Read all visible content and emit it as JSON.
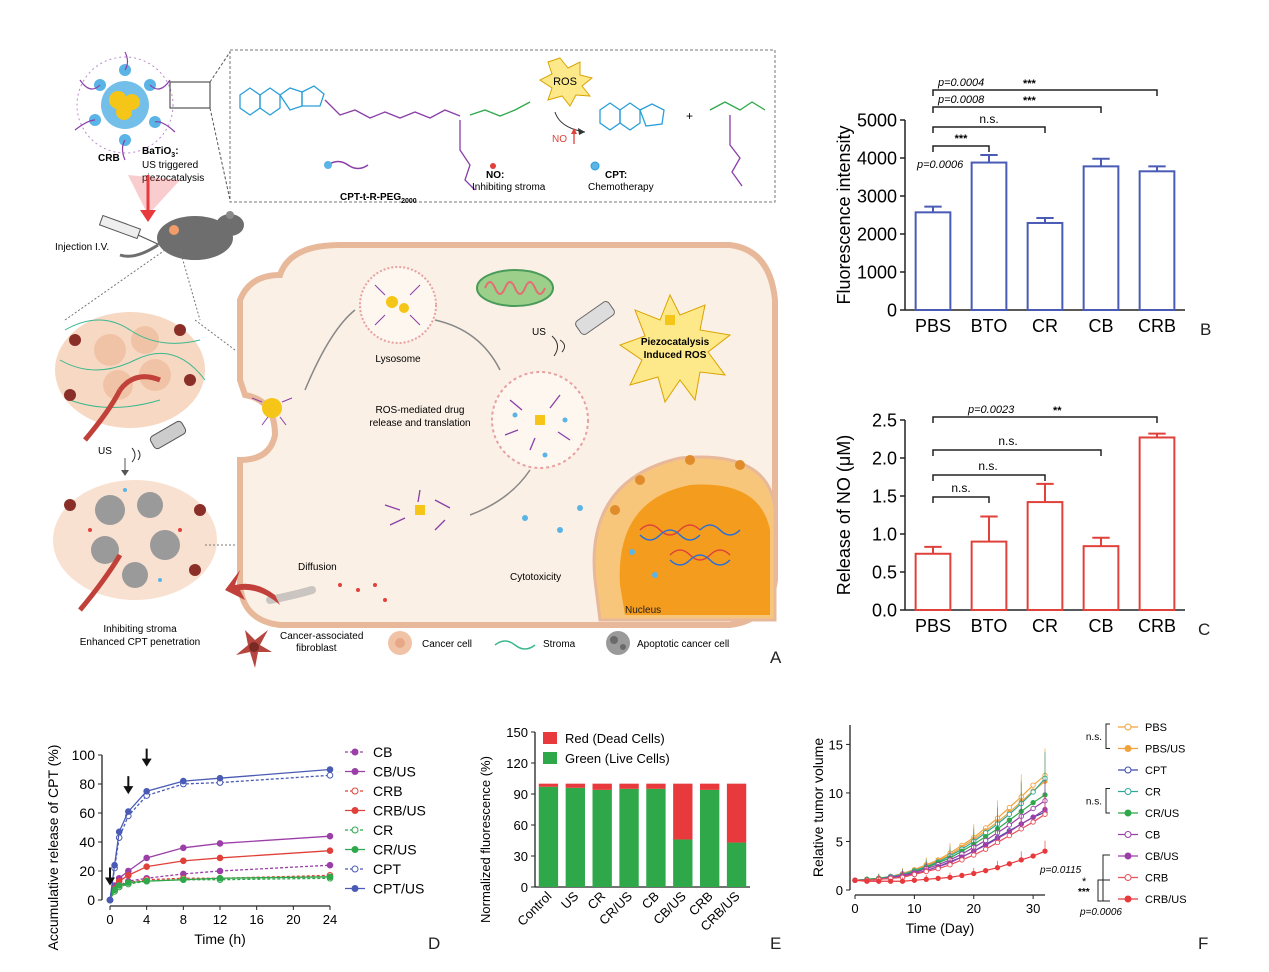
{
  "panel_letters": {
    "A": "A",
    "B": "B",
    "C": "C",
    "D": "D",
    "E": "E",
    "F": "F"
  },
  "schematic": {
    "nanoparticle_title": "BaTiO",
    "nanoparticle_sub": "3",
    "nanoparticle_colon": ":",
    "nanoparticle_line1": "US triggered",
    "nanoparticle_line2": "piezocatalysis",
    "crb_label": "CRB",
    "injection_label": "Injection I.V.",
    "molecule_label": "CPT-t-R-PEG",
    "molecule_sub": "2000",
    "ros_label": "ROS",
    "no_arrow_label": "NO",
    "no_legend_title": "NO:",
    "no_legend_desc": "Inhibiting stroma",
    "cpt_legend_title": "CPT:",
    "cpt_legend_desc": "Chemotherapy",
    "us_label_left": "US",
    "us_label_cell": "US",
    "lysosome_label": "Lysosome",
    "piezo_line1": "Piezocatalysis",
    "piezo_line2": "Induced ROS",
    "ros_drug_line1": "ROS-mediated drug",
    "ros_drug_line2": "release and translation",
    "diffusion_label": "Diffusion",
    "cytotoxicity_label": "Cytotoxicity",
    "nucleus_label": "Nucleus",
    "inhibit_line1": "Inhibiting stroma",
    "inhibit_line2": "Enhanced CPT penetration",
    "legend_caf_line1": "Cancer-associated",
    "legend_caf_line2": "fibroblast",
    "legend_cancer": "Cancer cell",
    "legend_stroma": "Stroma",
    "legend_apoptotic": "Apoptotic  cancer cell",
    "colors": {
      "crb_core": "#f5c518",
      "crb_shell": "#5ab4e5",
      "peg": "#8a3fa8",
      "cell_fill": "#fbf0e6",
      "nucleus": "#f39c1e",
      "caf": "#b5453f"
    }
  },
  "chart_data": [
    {
      "id": "B",
      "type": "bar",
      "categories": [
        "PBS",
        "BTO",
        "CR",
        "CB",
        "CRB"
      ],
      "values": [
        2570,
        3880,
        2290,
        3780,
        3650
      ],
      "errors": [
        150,
        200,
        130,
        200,
        130
      ],
      "ylabel": "Fluorescence intensity",
      "ylim": [
        0,
        5000
      ],
      "yticks": [
        0,
        1000,
        2000,
        3000,
        4000,
        5000
      ],
      "color": "#4a5bb5",
      "annotations": [
        {
          "from": 0,
          "to": 1,
          "label": "***",
          "pvalue": "p=0.0006"
        },
        {
          "from": 0,
          "to": 2,
          "label": "n.s.",
          "pvalue": ""
        },
        {
          "from": 0,
          "to": 3,
          "label": "***",
          "pvalue": "p=0.0008"
        },
        {
          "from": 0,
          "to": 4,
          "label": "***",
          "pvalue": "p=0.0004"
        }
      ]
    },
    {
      "id": "C",
      "type": "bar",
      "categories": [
        "PBS",
        "BTO",
        "CR",
        "CB",
        "CRB"
      ],
      "values": [
        0.74,
        0.9,
        1.42,
        0.84,
        2.27
      ],
      "errors": [
        0.09,
        0.33,
        0.24,
        0.11,
        0.05
      ],
      "ylabel": "Release of NO (μM)",
      "ylim": [
        0,
        2.5
      ],
      "yticks": [
        "0.0",
        "0.5",
        "1.0",
        "1.5",
        "2.0",
        "2.5"
      ],
      "color": "#e0413a",
      "annotations": [
        {
          "from": 0,
          "to": 1,
          "label": "n.s.",
          "pvalue": ""
        },
        {
          "from": 0,
          "to": 2,
          "label": "n.s.",
          "pvalue": ""
        },
        {
          "from": 0,
          "to": 3,
          "label": "n.s.",
          "pvalue": ""
        },
        {
          "from": 0,
          "to": 4,
          "label": "**",
          "pvalue": "p=0.0023"
        }
      ]
    },
    {
      "id": "D",
      "type": "line",
      "xlabel": "Time (h)",
      "ylabel": "Accumulative release of CPT (%)",
      "xticks": [
        0,
        4,
        8,
        12,
        16,
        20,
        24
      ],
      "yticks": [
        0,
        20,
        40,
        60,
        80,
        100
      ],
      "xlim": [
        0,
        24
      ],
      "ylim": [
        0,
        100
      ],
      "x": [
        0,
        0.5,
        1,
        2,
        4,
        8,
        12,
        24
      ],
      "arrows_x": [
        0,
        2,
        4
      ],
      "series": [
        {
          "name": "CB",
          "values": [
            0,
            7,
            10,
            13,
            15,
            18,
            20,
            24
          ],
          "color": "#9b3fa8",
          "dashed": true,
          "marker": "filled"
        },
        {
          "name": "CB/US",
          "values": [
            0,
            10,
            15,
            20,
            29,
            36,
            39,
            44
          ],
          "color": "#9b3fa8",
          "dashed": false,
          "marker": "filled"
        },
        {
          "name": "CRB",
          "values": [
            0,
            6,
            9,
            12,
            14,
            15,
            15,
            17
          ],
          "color": "#e0413a",
          "dashed": true,
          "marker": "open"
        },
        {
          "name": "CRB/US",
          "values": [
            0,
            8,
            13,
            17,
            23,
            27,
            29,
            34
          ],
          "color": "#e0413a",
          "dashed": false,
          "marker": "filled"
        },
        {
          "name": "CR",
          "values": [
            0,
            6,
            9,
            11,
            13,
            14,
            14,
            15
          ],
          "color": "#2ea84a",
          "dashed": true,
          "marker": "open"
        },
        {
          "name": "CR/US",
          "values": [
            0,
            7,
            10,
            12,
            13,
            14,
            15,
            16
          ],
          "color": "#2ea84a",
          "dashed": false,
          "marker": "filled"
        },
        {
          "name": "CPT",
          "values": [
            0,
            22,
            43,
            58,
            72,
            80,
            81,
            86
          ],
          "color": "#4a5bb5",
          "dashed": true,
          "marker": "open"
        },
        {
          "name": "CPT/US",
          "values": [
            0,
            24,
            47,
            61,
            75,
            82,
            84,
            90
          ],
          "color": "#4a5bb5",
          "dashed": false,
          "marker": "filled"
        }
      ]
    },
    {
      "id": "E",
      "type": "bar",
      "stacked": true,
      "categories": [
        "Control",
        "US",
        "CR",
        "CR/US",
        "CB",
        "CB/US",
        "CRB",
        "CRB/US"
      ],
      "ylabel": "Normalized fluorescence (%)",
      "ylim": [
        0,
        150
      ],
      "yticks": [
        0,
        30,
        60,
        90,
        120,
        150
      ],
      "series": [
        {
          "name": "Green (Live Cells)",
          "values": [
            97,
            96,
            94,
            95,
            95,
            46,
            94,
            43
          ],
          "color": "#2fa84a"
        },
        {
          "name": "Red (Dead Cells)",
          "values": [
            3,
            4,
            6,
            5,
            5,
            54,
            6,
            57
          ],
          "color": "#e8393c"
        }
      ]
    },
    {
      "id": "F",
      "type": "line",
      "xlabel": "Time (Day)",
      "ylabel": "Relative tumor volume",
      "xticks": [
        0,
        10,
        20,
        30
      ],
      "yticks": [
        0,
        5,
        10,
        15
      ],
      "xlim": [
        0,
        32
      ],
      "ylim": [
        0,
        17
      ],
      "x": [
        0,
        2,
        4,
        6,
        8,
        10,
        12,
        14,
        16,
        18,
        20,
        22,
        24,
        26,
        28,
        30,
        32
      ],
      "series": [
        {
          "name": "PBS",
          "values": [
            1,
            1.1,
            1.2,
            1.4,
            1.7,
            2.1,
            2.6,
            3.1,
            3.8,
            4.6,
            5.4,
            6.4,
            7.4,
            8.5,
            9.6,
            10.8,
            11.8
          ],
          "color": "#f0a23c",
          "marker": "open"
        },
        {
          "name": "PBS/US",
          "values": [
            1,
            1.1,
            1.2,
            1.4,
            1.6,
            2.0,
            2.5,
            3.0,
            3.6,
            4.4,
            5.2,
            6.1,
            7.0,
            8.0,
            9.1,
            10.2,
            11.2
          ],
          "color": "#f0a23c",
          "marker": "filled"
        },
        {
          "name": "CPT",
          "values": [
            1,
            1.0,
            1.1,
            1.2,
            1.4,
            1.6,
            2.0,
            2.4,
            2.9,
            3.4,
            4.0,
            4.7,
            5.4,
            6.1,
            6.8,
            7.5,
            8.0
          ],
          "color": "#3c4aa8",
          "marker": "open"
        },
        {
          "name": "CR",
          "values": [
            1,
            1.1,
            1.2,
            1.4,
            1.6,
            2.0,
            2.4,
            2.9,
            3.5,
            4.2,
            5.0,
            5.9,
            6.8,
            7.8,
            8.9,
            10.1,
            11.5
          ],
          "color": "#2fa89a",
          "marker": "open"
        },
        {
          "name": "CR/US",
          "values": [
            1,
            1.1,
            1.2,
            1.3,
            1.5,
            1.9,
            2.3,
            2.8,
            3.3,
            4.0,
            4.7,
            5.5,
            6.3,
            7.2,
            8.1,
            9.0,
            9.8
          ],
          "color": "#2fa84a",
          "marker": "filled"
        },
        {
          "name": "CB",
          "values": [
            1,
            1.0,
            1.1,
            1.3,
            1.5,
            1.8,
            2.2,
            2.6,
            3.1,
            3.7,
            4.4,
            5.1,
            5.9,
            6.7,
            7.6,
            8.4,
            9.2
          ],
          "color": "#9b3fa8",
          "marker": "open"
        },
        {
          "name": "CB/US",
          "values": [
            1,
            1.0,
            1.1,
            1.2,
            1.4,
            1.7,
            2.0,
            2.4,
            2.8,
            3.4,
            4.0,
            4.6,
            5.3,
            6.0,
            6.8,
            7.5,
            8.3
          ],
          "color": "#9b3fa8",
          "marker": "filled"
        },
        {
          "name": "CRB",
          "values": [
            1,
            1.0,
            1.1,
            1.2,
            1.3,
            1.6,
            1.9,
            2.2,
            2.6,
            3.1,
            3.6,
            4.2,
            4.9,
            5.6,
            6.3,
            7.0,
            7.8
          ],
          "color": "#e8505b",
          "marker": "open"
        },
        {
          "name": "CRB/US",
          "values": [
            1,
            0.9,
            0.9,
            0.9,
            0.9,
            1.0,
            1.1,
            1.2,
            1.3,
            1.5,
            1.7,
            2.0,
            2.3,
            2.7,
            3.1,
            3.5,
            4.0
          ],
          "color": "#e8393c",
          "marker": "filled"
        }
      ],
      "legend_brackets": [
        {
          "label": "n.s.",
          "between": [
            "PBS",
            "PBS/US"
          ]
        },
        {
          "label": "n.s.",
          "between": [
            "CR",
            "CR/US"
          ]
        }
      ],
      "stat_annotations": {
        "p1": "p=0.0115",
        "s1": "*",
        "p2": "p=0.0006",
        "s2": "***"
      }
    }
  ]
}
